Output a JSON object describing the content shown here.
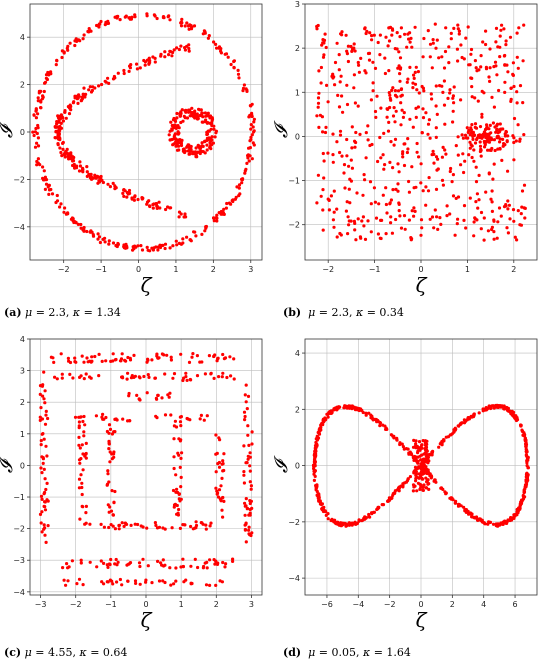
{
  "colors": {
    "points": "#ff0000",
    "grid": "#bdbdbd",
    "frame": "#333333"
  },
  "chart_data": [
    {
      "type": "scatter",
      "shape": "nested-loops",
      "xlabel": "ζ",
      "ylabel": "𝓘",
      "xlim": [
        -2.9,
        3.3
      ],
      "ylim": [
        -5.4,
        5.4
      ],
      "xticks": [
        -2,
        -1,
        0,
        1,
        2,
        3
      ],
      "yticks": [
        -4,
        -2,
        0,
        2,
        4
      ],
      "grid": true,
      "caption": {
        "letter": "(a)",
        "mu": "2.3",
        "kappa": "1.34"
      }
    },
    {
      "type": "scatter",
      "shape": "random-cloud",
      "xlabel": "ζ",
      "ylabel": "𝓘",
      "xlim": [
        -2.5,
        2.5
      ],
      "ylim": [
        -2.8,
        3.0
      ],
      "xticks": [
        -2,
        -1,
        0,
        1,
        2
      ],
      "yticks": [
        -2,
        -1,
        0,
        1,
        2,
        3
      ],
      "grid": true,
      "caption": {
        "letter": "(b)",
        "mu": "2.3",
        "kappa": "0.34"
      }
    },
    {
      "type": "scatter",
      "shape": "rectangular-bands",
      "xlabel": "ζ",
      "ylabel": "𝓘",
      "xlim": [
        -3.3,
        3.3
      ],
      "ylim": [
        -4.1,
        4.0
      ],
      "xticks": [
        -3,
        -2,
        -1,
        0,
        1,
        2,
        3
      ],
      "yticks": [
        -4,
        -3,
        -2,
        -1,
        0,
        1,
        2,
        3,
        4
      ],
      "grid": true,
      "caption": {
        "letter": "(c)",
        "mu": "4.55",
        "kappa": "0.64"
      }
    },
    {
      "type": "scatter",
      "shape": "figure-eight",
      "xlabel": "ζ",
      "ylabel": "𝓘",
      "xlim": [
        -7.4,
        7.4
      ],
      "ylim": [
        -4.6,
        4.5
      ],
      "xticks": [
        -6,
        -4,
        -2,
        0,
        2,
        4,
        6
      ],
      "yticks": [
        -4,
        -2,
        0,
        2,
        4
      ],
      "grid": true,
      "caption": {
        "letter": "(d)",
        "mu": "0.05",
        "kappa": "1.64"
      }
    }
  ]
}
